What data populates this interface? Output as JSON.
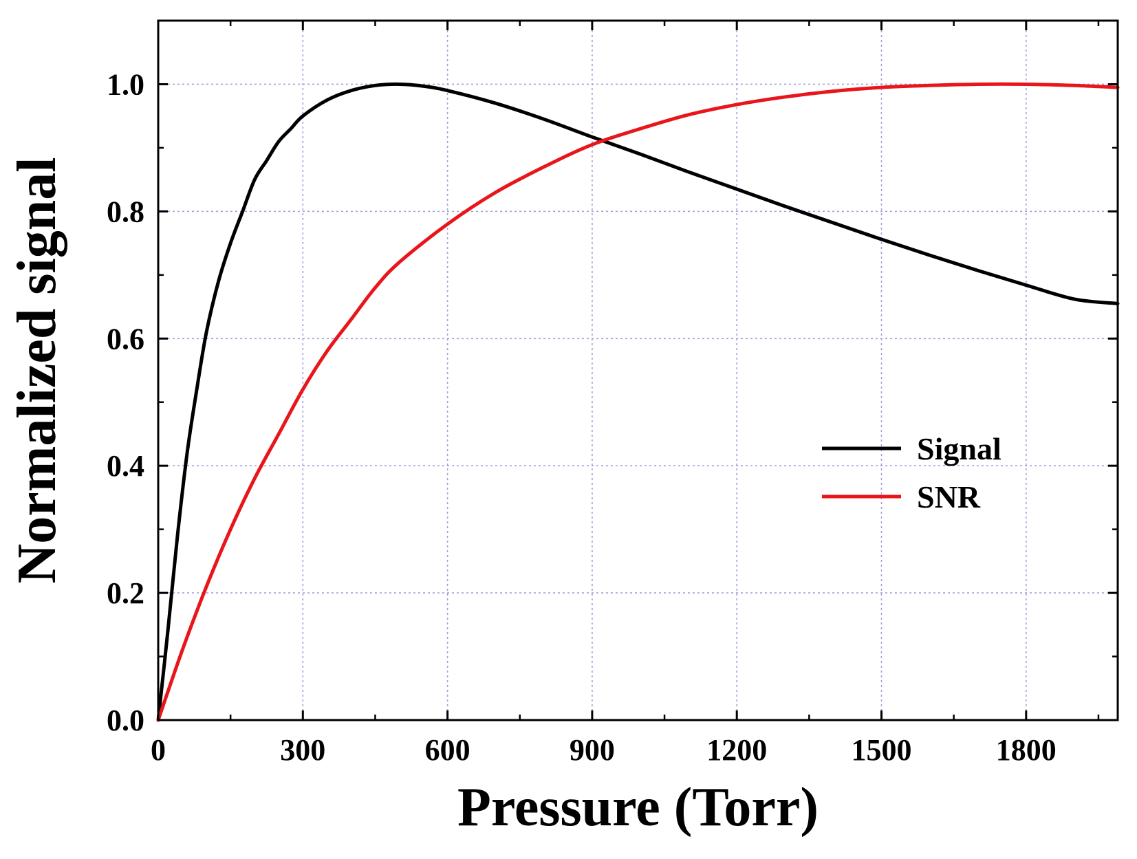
{
  "chart_data": {
    "type": "line",
    "title": "",
    "xlabel": "Pressure (Torr)",
    "ylabel": "Normalized signal",
    "xlim": [
      0,
      1990
    ],
    "ylim": [
      0,
      1.1
    ],
    "x_ticks": [
      0,
      300,
      600,
      900,
      1200,
      1500,
      1800
    ],
    "y_ticks": [
      0.0,
      0.2,
      0.4,
      0.6,
      0.8,
      1.0
    ],
    "x_tick_labels": [
      "0",
      "300",
      "600",
      "900",
      "1200",
      "1500",
      "1800"
    ],
    "y_tick_labels": [
      "0.0",
      "0.2",
      "0.4",
      "0.6",
      "0.8",
      "1.0"
    ],
    "grid": true,
    "legend_position": "center-right",
    "series": [
      {
        "name": "Signal",
        "color": "#000000",
        "x": [
          0,
          20,
          40,
          60,
          80,
          100,
          125,
          150,
          175,
          200,
          225,
          250,
          275,
          300,
          350,
          400,
          450,
          500,
          550,
          600,
          700,
          800,
          900,
          1000,
          1100,
          1200,
          1300,
          1400,
          1500,
          1600,
          1700,
          1800,
          1900,
          1990
        ],
        "y": [
          0.0,
          0.14,
          0.29,
          0.42,
          0.52,
          0.61,
          0.69,
          0.75,
          0.8,
          0.85,
          0.88,
          0.91,
          0.93,
          0.95,
          0.975,
          0.99,
          0.998,
          1.0,
          0.997,
          0.99,
          0.97,
          0.945,
          0.917,
          0.89,
          0.862,
          0.835,
          0.808,
          0.782,
          0.756,
          0.731,
          0.707,
          0.684,
          0.662,
          0.655
        ]
      },
      {
        "name": "SNR",
        "color": "#e8161b",
        "x": [
          0,
          50,
          100,
          150,
          200,
          250,
          300,
          350,
          400,
          450,
          500,
          600,
          700,
          800,
          900,
          1000,
          1100,
          1200,
          1300,
          1400,
          1500,
          1600,
          1700,
          1800,
          1900,
          1990
        ],
        "y": [
          0.0,
          0.11,
          0.21,
          0.3,
          0.38,
          0.45,
          0.52,
          0.58,
          0.63,
          0.68,
          0.72,
          0.78,
          0.83,
          0.87,
          0.905,
          0.93,
          0.952,
          0.968,
          0.98,
          0.989,
          0.995,
          0.998,
          1.0,
          1.0,
          0.998,
          0.995
        ]
      }
    ]
  }
}
